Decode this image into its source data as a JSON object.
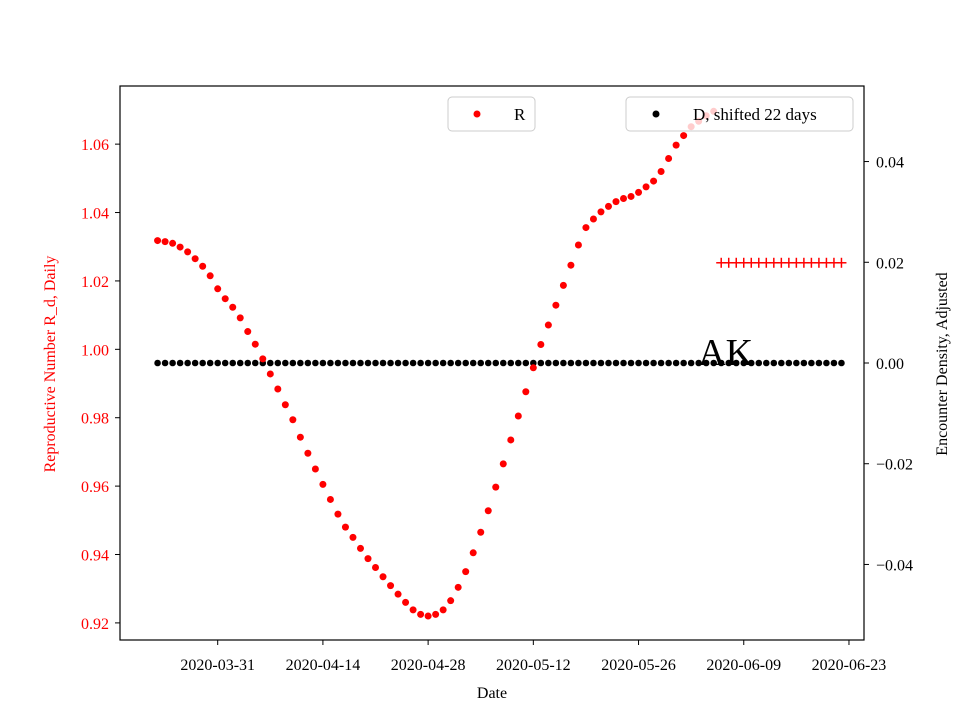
{
  "chart_data": {
    "type": "scatter",
    "xlabel": "Date",
    "ylabel_left": "Reproductive Number R_d, Daily",
    "ylabel_right": "Encounter Density, Adjusted",
    "x_range": [
      "2020-03-18",
      "2020-06-25"
    ],
    "ylim_left": [
      0.915,
      1.077
    ],
    "ylim_right": [
      -0.055,
      0.055
    ],
    "x_ticks": [
      "2020-03-31",
      "2020-04-14",
      "2020-04-28",
      "2020-05-12",
      "2020-05-26",
      "2020-06-09",
      "2020-06-23"
    ],
    "y_ticks_left": [
      0.92,
      0.94,
      0.96,
      0.98,
      1.0,
      1.02,
      1.04,
      1.06
    ],
    "y_ticks_left_labels": [
      "0.92",
      "0.94",
      "0.96",
      "0.98",
      "1.00",
      "1.02",
      "1.04",
      "1.06"
    ],
    "y_ticks_right": [
      -0.04,
      -0.02,
      0.0,
      0.02,
      0.04
    ],
    "y_ticks_right_labels": [
      "−0.04",
      "−0.02",
      "0.00",
      "0.02",
      "0.04"
    ],
    "annotation": "AK",
    "annotation_position": {
      "date": "2020-06-04",
      "value": 0.0
    },
    "left_axis_color": "#ff0000",
    "right_axis_color": "#000000",
    "legend_left": "top-center",
    "legend_right": "top-right",
    "grid": false,
    "series": [
      {
        "name": "R",
        "axis": "left",
        "color": "#ff0000",
        "marker": "dot",
        "start_date": "2020-03-23",
        "values": [
          1.0318,
          1.0315,
          1.031,
          1.0299,
          1.0285,
          1.0265,
          1.0243,
          1.0215,
          1.0177,
          1.0148,
          1.0123,
          1.0092,
          1.0052,
          1.0015,
          0.9972,
          0.9928,
          0.9884,
          0.9838,
          0.9794,
          0.9743,
          0.9696,
          0.965,
          0.9605,
          0.9561,
          0.9518,
          0.948,
          0.945,
          0.9418,
          0.9388,
          0.9362,
          0.9335,
          0.9309,
          0.9284,
          0.926,
          0.9238,
          0.9225,
          0.922,
          0.9225,
          0.9238,
          0.9265,
          0.9304,
          0.935,
          0.9405,
          0.9465,
          0.9528,
          0.9597,
          0.9665,
          0.9735,
          0.9805,
          0.9876,
          0.9946,
          1.0014,
          1.0071,
          1.0129,
          1.0187,
          1.0246,
          1.0305,
          1.0356,
          1.0381,
          1.0402,
          1.0418,
          1.0432,
          1.0441,
          1.0447,
          1.0459,
          1.0475,
          1.0492,
          1.052,
          1.0558,
          1.0597,
          1.0625,
          1.0651,
          1.0667,
          1.0683,
          1.0696
        ]
      },
      {
        "name": "D, shifted 22 days",
        "axis": "right",
        "color": "#000000",
        "marker": "dot",
        "start_date": "2020-03-23",
        "end_date": "2020-06-22",
        "value": 0.0
      },
      {
        "name": "",
        "axis": "right",
        "color": "#ff0000",
        "marker": "plus",
        "start_date": "2020-06-06",
        "end_date": "2020-06-22",
        "value": 0.0199
      }
    ]
  }
}
